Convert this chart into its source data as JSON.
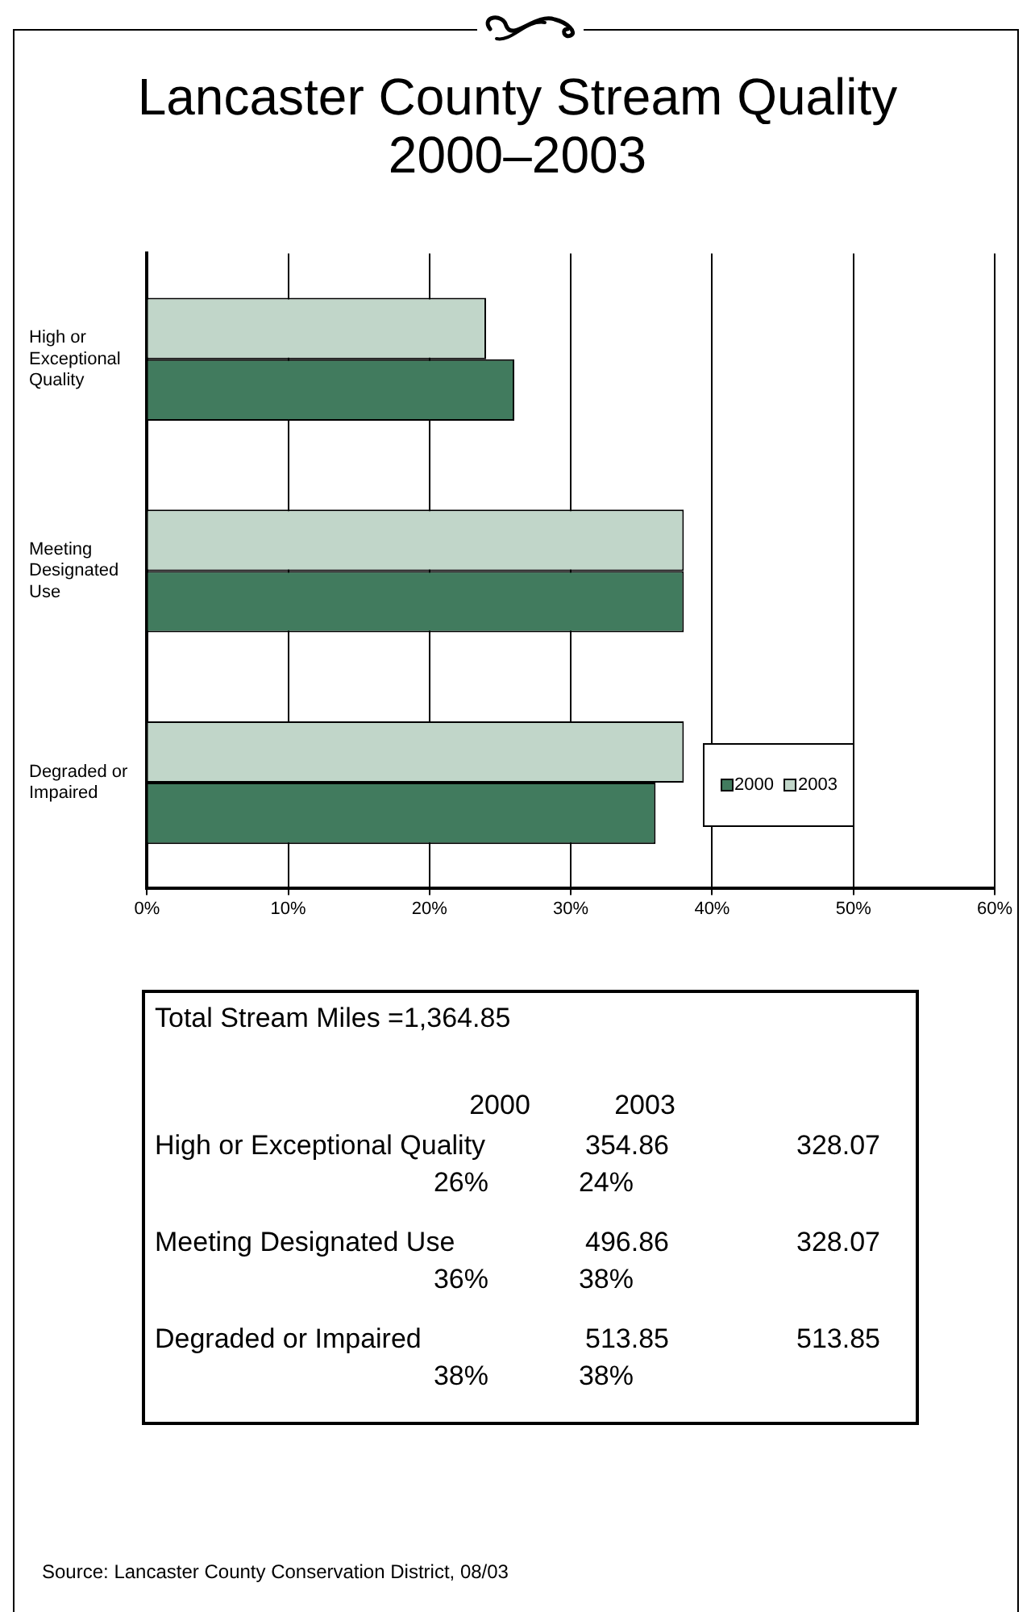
{
  "chart_data": {
    "type": "bar",
    "orientation": "horizontal",
    "title": "Lancaster County Stream Quality 2000–2003",
    "categories": [
      "High or Exceptional Quality",
      "Meeting Designated Use",
      "Degraded or Impaired"
    ],
    "series": [
      {
        "name": "2000",
        "color": "#417b5e",
        "values": [
          26,
          38,
          36
        ]
      },
      {
        "name": "2003",
        "color": "#c1d6c9",
        "values": [
          24,
          38,
          38
        ]
      }
    ],
    "xlim": [
      0,
      60
    ],
    "xticks": [
      {
        "value": 0,
        "label": "0%"
      },
      {
        "value": 10,
        "label": "10%"
      },
      {
        "value": 20,
        "label": "20%"
      },
      {
        "value": 30,
        "label": "30%"
      },
      {
        "value": 40,
        "label": "40%"
      },
      {
        "value": 50,
        "label": "50%"
      },
      {
        "value": 60,
        "label": "60%"
      }
    ],
    "grid": "x",
    "legend": "bottom right",
    "annotations": [
      "Total Stream Miles =1,364.85",
      "2000",
      "2003",
      "High or Exceptional Quality",
      "354.86",
      "328.07",
      "26%",
      "24%",
      "Meeting Designated Use",
      "496.86",
      "328.07",
      "36%",
      "38%",
      "Degraded or Impaired",
      "513.85",
      "513.85",
      "38%",
      "38%",
      "Source: Lancaster County Conservation District, 08/03"
    ]
  }
}
